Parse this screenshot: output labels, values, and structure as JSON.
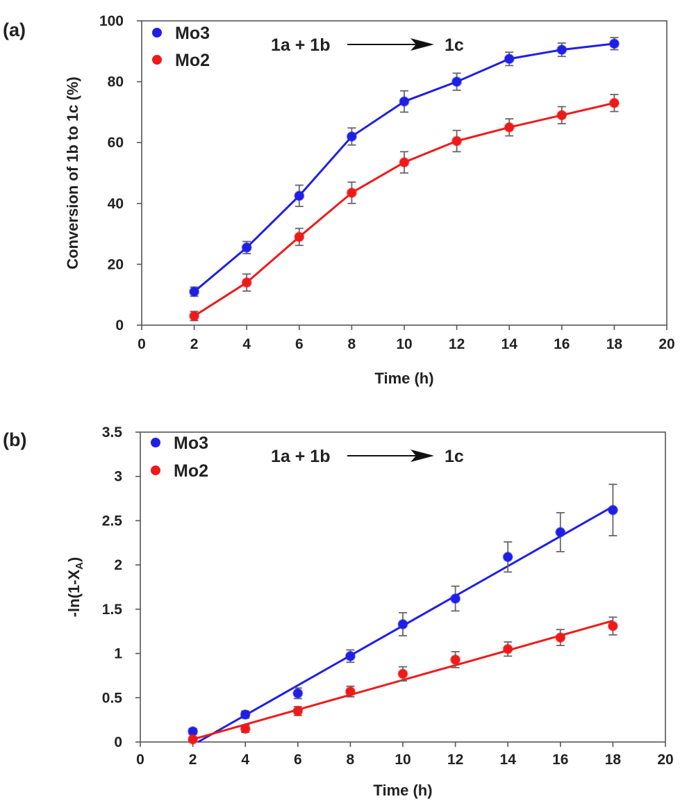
{
  "chart_data": [
    {
      "panel_label": "(a)",
      "type": "line",
      "xlabel": "Time (h)",
      "ylabel": "Conversion of 1b to 1c (%)",
      "xlim": [
        0,
        20
      ],
      "ylim": [
        0,
        100
      ],
      "xticks": [
        0,
        2,
        4,
        6,
        8,
        10,
        12,
        14,
        16,
        18,
        20
      ],
      "yticks": [
        0,
        20,
        40,
        60,
        80,
        100
      ],
      "legend_position": "top-left",
      "grid": false,
      "reaction": {
        "reactants": "1a + 1b",
        "product": "1c"
      },
      "series": [
        {
          "name": "Mo3",
          "color": "#1f1fe6",
          "x": [
            2,
            4,
            6,
            8,
            10,
            12,
            14,
            16,
            18
          ],
          "y": [
            11,
            25.5,
            42.5,
            62,
            73.5,
            80,
            87.5,
            90.5,
            92.5
          ],
          "err": [
            1.5,
            2,
            3.5,
            2.8,
            3.5,
            2.8,
            2.2,
            2.2,
            2
          ]
        },
        {
          "name": "Mo2",
          "color": "#ee1a1a",
          "x": [
            2,
            4,
            6,
            8,
            10,
            12,
            14,
            16,
            18
          ],
          "y": [
            3,
            14,
            29,
            43.5,
            53.5,
            60.5,
            65,
            69,
            73
          ],
          "err": [
            1.5,
            2.8,
            2.8,
            3.5,
            3.5,
            3.5,
            2.8,
            2.8,
            2.8
          ]
        }
      ]
    },
    {
      "panel_label": "(b)",
      "type": "scatter",
      "xlabel": "Time (h)",
      "ylabel": "-ln(1-X",
      "ylabel_sub": "A",
      "ylabel_end": ")",
      "xlim": [
        0,
        20
      ],
      "ylim": [
        0,
        3.5
      ],
      "xticks": [
        0,
        2,
        4,
        6,
        8,
        10,
        12,
        14,
        16,
        18,
        20
      ],
      "yticks": [
        0,
        0.5,
        1,
        1.5,
        2,
        2.5,
        3,
        3.5
      ],
      "legend_position": "top-left",
      "grid": false,
      "reaction": {
        "reactants": "1a + 1b",
        "product": "1c"
      },
      "series": [
        {
          "name": "Mo3",
          "color": "#1f1fe6",
          "x": [
            2,
            4,
            6,
            8,
            10,
            12,
            14,
            16,
            18
          ],
          "y": [
            0.12,
            0.31,
            0.55,
            0.97,
            1.33,
            1.62,
            2.09,
            2.37,
            2.62
          ],
          "err": [
            0.03,
            0.04,
            0.06,
            0.07,
            0.13,
            0.14,
            0.17,
            0.22,
            0.29
          ],
          "fit": {
            "x": [
              2.2,
              18
            ],
            "y": [
              0,
              2.66
            ]
          }
        },
        {
          "name": "Mo2",
          "color": "#ee1a1a",
          "x": [
            2,
            4,
            6,
            8,
            10,
            12,
            14,
            16,
            18
          ],
          "y": [
            0.03,
            0.15,
            0.35,
            0.57,
            0.77,
            0.93,
            1.05,
            1.18,
            1.31
          ],
          "err": [
            0.02,
            0.04,
            0.05,
            0.06,
            0.08,
            0.09,
            0.08,
            0.09,
            0.1
          ],
          "fit": {
            "x": [
              2,
              18
            ],
            "y": [
              0.03,
              1.37
            ]
          }
        }
      ]
    }
  ]
}
